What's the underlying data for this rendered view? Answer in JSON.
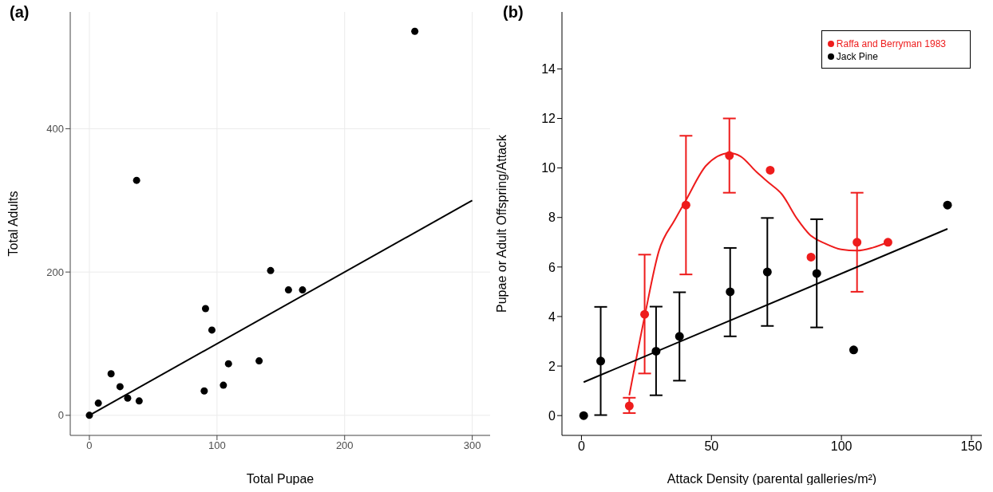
{
  "chart_data": [
    {
      "type": "scatter",
      "title": "(a)",
      "xlabel": "Total Pupae",
      "ylabel": "Total Adults",
      "xlim": [
        -15,
        314
      ],
      "ylim": [
        -28,
        563
      ],
      "xticks": [
        0,
        100,
        200,
        300
      ],
      "yticks": [
        0,
        200,
        400
      ],
      "grid": true,
      "series": [
        {
          "color": "#000000",
          "marker": "circle",
          "x": [
            0,
            7,
            17,
            24,
            30,
            39,
            37,
            90,
            91,
            96,
            105,
            109,
            133,
            142,
            156,
            167,
            255
          ],
          "values": [
            0,
            17,
            58,
            40,
            24,
            20,
            328,
            34,
            149,
            119,
            42,
            72,
            76,
            202,
            175,
            175,
            536
          ]
        },
        {
          "type": "line",
          "color": "#000000",
          "marker": "none",
          "x": [
            0,
            300
          ],
          "values": [
            0,
            300
          ]
        }
      ]
    },
    {
      "type": "scatter",
      "title": "(b)",
      "xlabel": "Attack Density (parental galleries/m²)",
      "ylabel": "Pupae or Adult Offspring/Attack",
      "xlim": [
        -7.5,
        154
      ],
      "ylim": [
        -0.8,
        16.3
      ],
      "xticks": [
        0,
        50,
        100,
        150
      ],
      "yticks": [
        0,
        2,
        4,
        6,
        8,
        10,
        12,
        14
      ],
      "grid": false,
      "legend": "top right",
      "series": [
        {
          "name": "Raffa and Berryman 1983",
          "color": "#ee1c1c",
          "marker": "circle",
          "x": [
            18.4,
            24.3,
            40.2,
            56.9,
            72.6,
            88.3,
            106,
            117.9
          ],
          "values": [
            0.39,
            4.09,
            8.5,
            10.5,
            9.91,
            6.4,
            7.0,
            7.0
          ],
          "errors": [
            [
              0.1,
              0.72
            ],
            [
              1.7,
              6.5
            ],
            [
              5.7,
              11.3
            ],
            [
              9.0,
              12.0
            ],
            null,
            null,
            [
              5.0,
              9.0
            ],
            null
          ]
        },
        {
          "type": "line",
          "color": "#ee1c1c",
          "marker": "none",
          "x": [
            18.4,
            24.3,
            29.8,
            35.9,
            40.2,
            48,
            56.9,
            61.2,
            67.3,
            72.1,
            77,
            83,
            87.8,
            93.9,
            99.9,
            106,
            112,
            117.9
          ],
          "values": [
            0.82,
            4.0,
            6.65,
            7.9,
            8.7,
            10.1,
            10.6,
            10.47,
            9.84,
            9.4,
            8.95,
            7.94,
            7.31,
            6.94,
            6.71,
            6.66,
            6.78,
            7.0
          ]
        },
        {
          "name": "Jack Pine",
          "color": "#000000",
          "marker": "circle",
          "x": [
            0.85,
            7.4,
            28.7,
            37.7,
            57.2,
            71.5,
            90.5,
            104.7,
            140.8
          ],
          "values": [
            0,
            2.2,
            2.6,
            3.2,
            5.0,
            5.8,
            5.74,
            2.65,
            8.5
          ],
          "errors": [
            null,
            [
              0.02,
              4.39
            ],
            [
              0.82,
              4.4
            ],
            [
              1.41,
              4.98
            ],
            [
              3.2,
              6.77
            ],
            [
              3.62,
              7.98
            ],
            [
              3.56,
              7.93
            ],
            null,
            null
          ]
        },
        {
          "type": "line",
          "color": "#000000",
          "marker": "none",
          "x": [
            0.85,
            140.8
          ],
          "values": [
            1.35,
            7.54
          ]
        }
      ]
    }
  ]
}
